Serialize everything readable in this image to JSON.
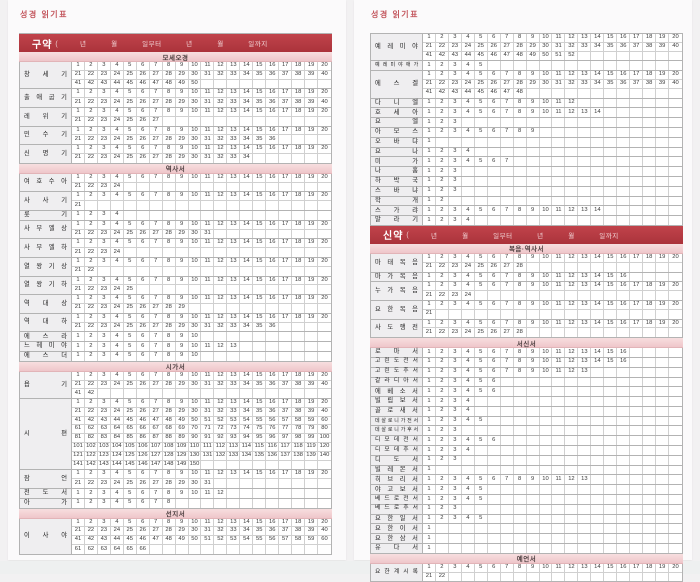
{
  "grid_columns": 20,
  "colors": {
    "testament_bar_red": "#b13840",
    "section_pink": "#f0c9cd",
    "title_pink": "#c4585f",
    "book_name_bg": "#efeef0",
    "cell_border": "#d0d0d0"
  },
  "left_page": {
    "title": "성경 읽기표",
    "blocks": [
      {
        "type": "testament_header",
        "label": "구약",
        "mark": "(",
        "fields": [
          "년",
          "월",
          "일부터",
          "년",
          "월",
          "일까지"
        ]
      },
      {
        "type": "section",
        "label": "모세오경"
      },
      {
        "type": "book",
        "name": "창세기",
        "chapters": 50
      },
      {
        "type": "book",
        "name": "출애굽기",
        "chapters": 40
      },
      {
        "type": "book",
        "name": "레위기",
        "chapters": 27
      },
      {
        "type": "book",
        "name": "민수기",
        "chapters": 36
      },
      {
        "type": "book",
        "name": "신명기",
        "chapters": 34
      },
      {
        "type": "section",
        "label": "역사서"
      },
      {
        "type": "book",
        "name": "여호수아",
        "chapters": 24
      },
      {
        "type": "book",
        "name": "사사기",
        "chapters": 21
      },
      {
        "type": "book",
        "name": "룻기",
        "chapters": 4
      },
      {
        "type": "book",
        "name": "사무엘상",
        "chapters": 31
      },
      {
        "type": "book",
        "name": "사무엘하",
        "chapters": 24
      },
      {
        "type": "book",
        "name": "열왕기상",
        "chapters": 22
      },
      {
        "type": "book",
        "name": "열왕기하",
        "chapters": 25
      },
      {
        "type": "book",
        "name": "역대상",
        "chapters": 29
      },
      {
        "type": "book",
        "name": "역대하",
        "chapters": 36
      },
      {
        "type": "book",
        "name": "에스라",
        "chapters": 10
      },
      {
        "type": "book",
        "name": "느헤미야",
        "chapters": 13
      },
      {
        "type": "book",
        "name": "에스더",
        "chapters": 10
      },
      {
        "type": "section",
        "label": "시가서"
      },
      {
        "type": "book",
        "name": "욥기",
        "chapters": 42
      },
      {
        "type": "book",
        "name": "시편",
        "chapters": 150
      },
      {
        "type": "book",
        "name": "잠언",
        "chapters": 31
      },
      {
        "type": "book",
        "name": "전도서",
        "chapters": 12
      },
      {
        "type": "book",
        "name": "아가",
        "chapters": 8
      },
      {
        "type": "section",
        "label": "선지서"
      },
      {
        "type": "book",
        "name": "이사야",
        "chapters": 66
      }
    ]
  },
  "right_page": {
    "title": "성경 읽기표",
    "blocks": [
      {
        "type": "book",
        "name": "예레미야",
        "chapters": 52
      },
      {
        "type": "book",
        "name": "예레미야애가",
        "chapters": 5
      },
      {
        "type": "book",
        "name": "에스겔",
        "chapters": 48
      },
      {
        "type": "book",
        "name": "다니엘",
        "chapters": 12
      },
      {
        "type": "book",
        "name": "호세아",
        "chapters": 14
      },
      {
        "type": "book",
        "name": "요엘",
        "chapters": 3
      },
      {
        "type": "book",
        "name": "아모스",
        "chapters": 9
      },
      {
        "type": "book",
        "name": "오바댜",
        "chapters": 1
      },
      {
        "type": "book",
        "name": "요나",
        "chapters": 4
      },
      {
        "type": "book",
        "name": "미가",
        "chapters": 7
      },
      {
        "type": "book",
        "name": "나훔",
        "chapters": 3
      },
      {
        "type": "book",
        "name": "하박국",
        "chapters": 3
      },
      {
        "type": "book",
        "name": "스바냐",
        "chapters": 3
      },
      {
        "type": "book",
        "name": "학개",
        "chapters": 2
      },
      {
        "type": "book",
        "name": "스가랴",
        "chapters": 14
      },
      {
        "type": "book",
        "name": "말라기",
        "chapters": 4
      },
      {
        "type": "testament_header",
        "label": "신약",
        "mark": "(",
        "fields": [
          "년",
          "월",
          "일부터",
          "년",
          "월",
          "일까지"
        ]
      },
      {
        "type": "section",
        "label": "복음·역사서"
      },
      {
        "type": "book",
        "name": "마태복음",
        "chapters": 28
      },
      {
        "type": "book",
        "name": "마가복음",
        "chapters": 16
      },
      {
        "type": "book",
        "name": "누가복음",
        "chapters": 24
      },
      {
        "type": "book",
        "name": "요한복음",
        "chapters": 21
      },
      {
        "type": "book",
        "name": "사도행전",
        "chapters": 28
      },
      {
        "type": "section",
        "label": "서신서"
      },
      {
        "type": "book",
        "name": "로마서",
        "chapters": 16
      },
      {
        "type": "book",
        "name": "고린도전서",
        "chapters": 16
      },
      {
        "type": "book",
        "name": "고린도후서",
        "chapters": 13
      },
      {
        "type": "book",
        "name": "갈라디아서",
        "chapters": 6
      },
      {
        "type": "book",
        "name": "에베소서",
        "chapters": 6
      },
      {
        "type": "book",
        "name": "빌립보서",
        "chapters": 4
      },
      {
        "type": "book",
        "name": "골로새서",
        "chapters": 4
      },
      {
        "type": "book",
        "name": "데살로니가전서",
        "chapters": 5
      },
      {
        "type": "book",
        "name": "데살로니가후서",
        "chapters": 3
      },
      {
        "type": "book",
        "name": "디모데전서",
        "chapters": 6
      },
      {
        "type": "book",
        "name": "디모데후서",
        "chapters": 4
      },
      {
        "type": "book",
        "name": "디도서",
        "chapters": 3
      },
      {
        "type": "book",
        "name": "빌레몬서",
        "chapters": 1
      },
      {
        "type": "book",
        "name": "히브리서",
        "chapters": 13
      },
      {
        "type": "book",
        "name": "야고보서",
        "chapters": 5
      },
      {
        "type": "book",
        "name": "베드로전서",
        "chapters": 5
      },
      {
        "type": "book",
        "name": "베드로후서",
        "chapters": 3
      },
      {
        "type": "book",
        "name": "요한일서",
        "chapters": 5
      },
      {
        "type": "book",
        "name": "요한이서",
        "chapters": 1
      },
      {
        "type": "book",
        "name": "요한삼서",
        "chapters": 1
      },
      {
        "type": "book",
        "name": "유다서",
        "chapters": 1
      },
      {
        "type": "section",
        "label": "예언서"
      },
      {
        "type": "book",
        "name": "요한계시록",
        "chapters": 22
      }
    ]
  }
}
